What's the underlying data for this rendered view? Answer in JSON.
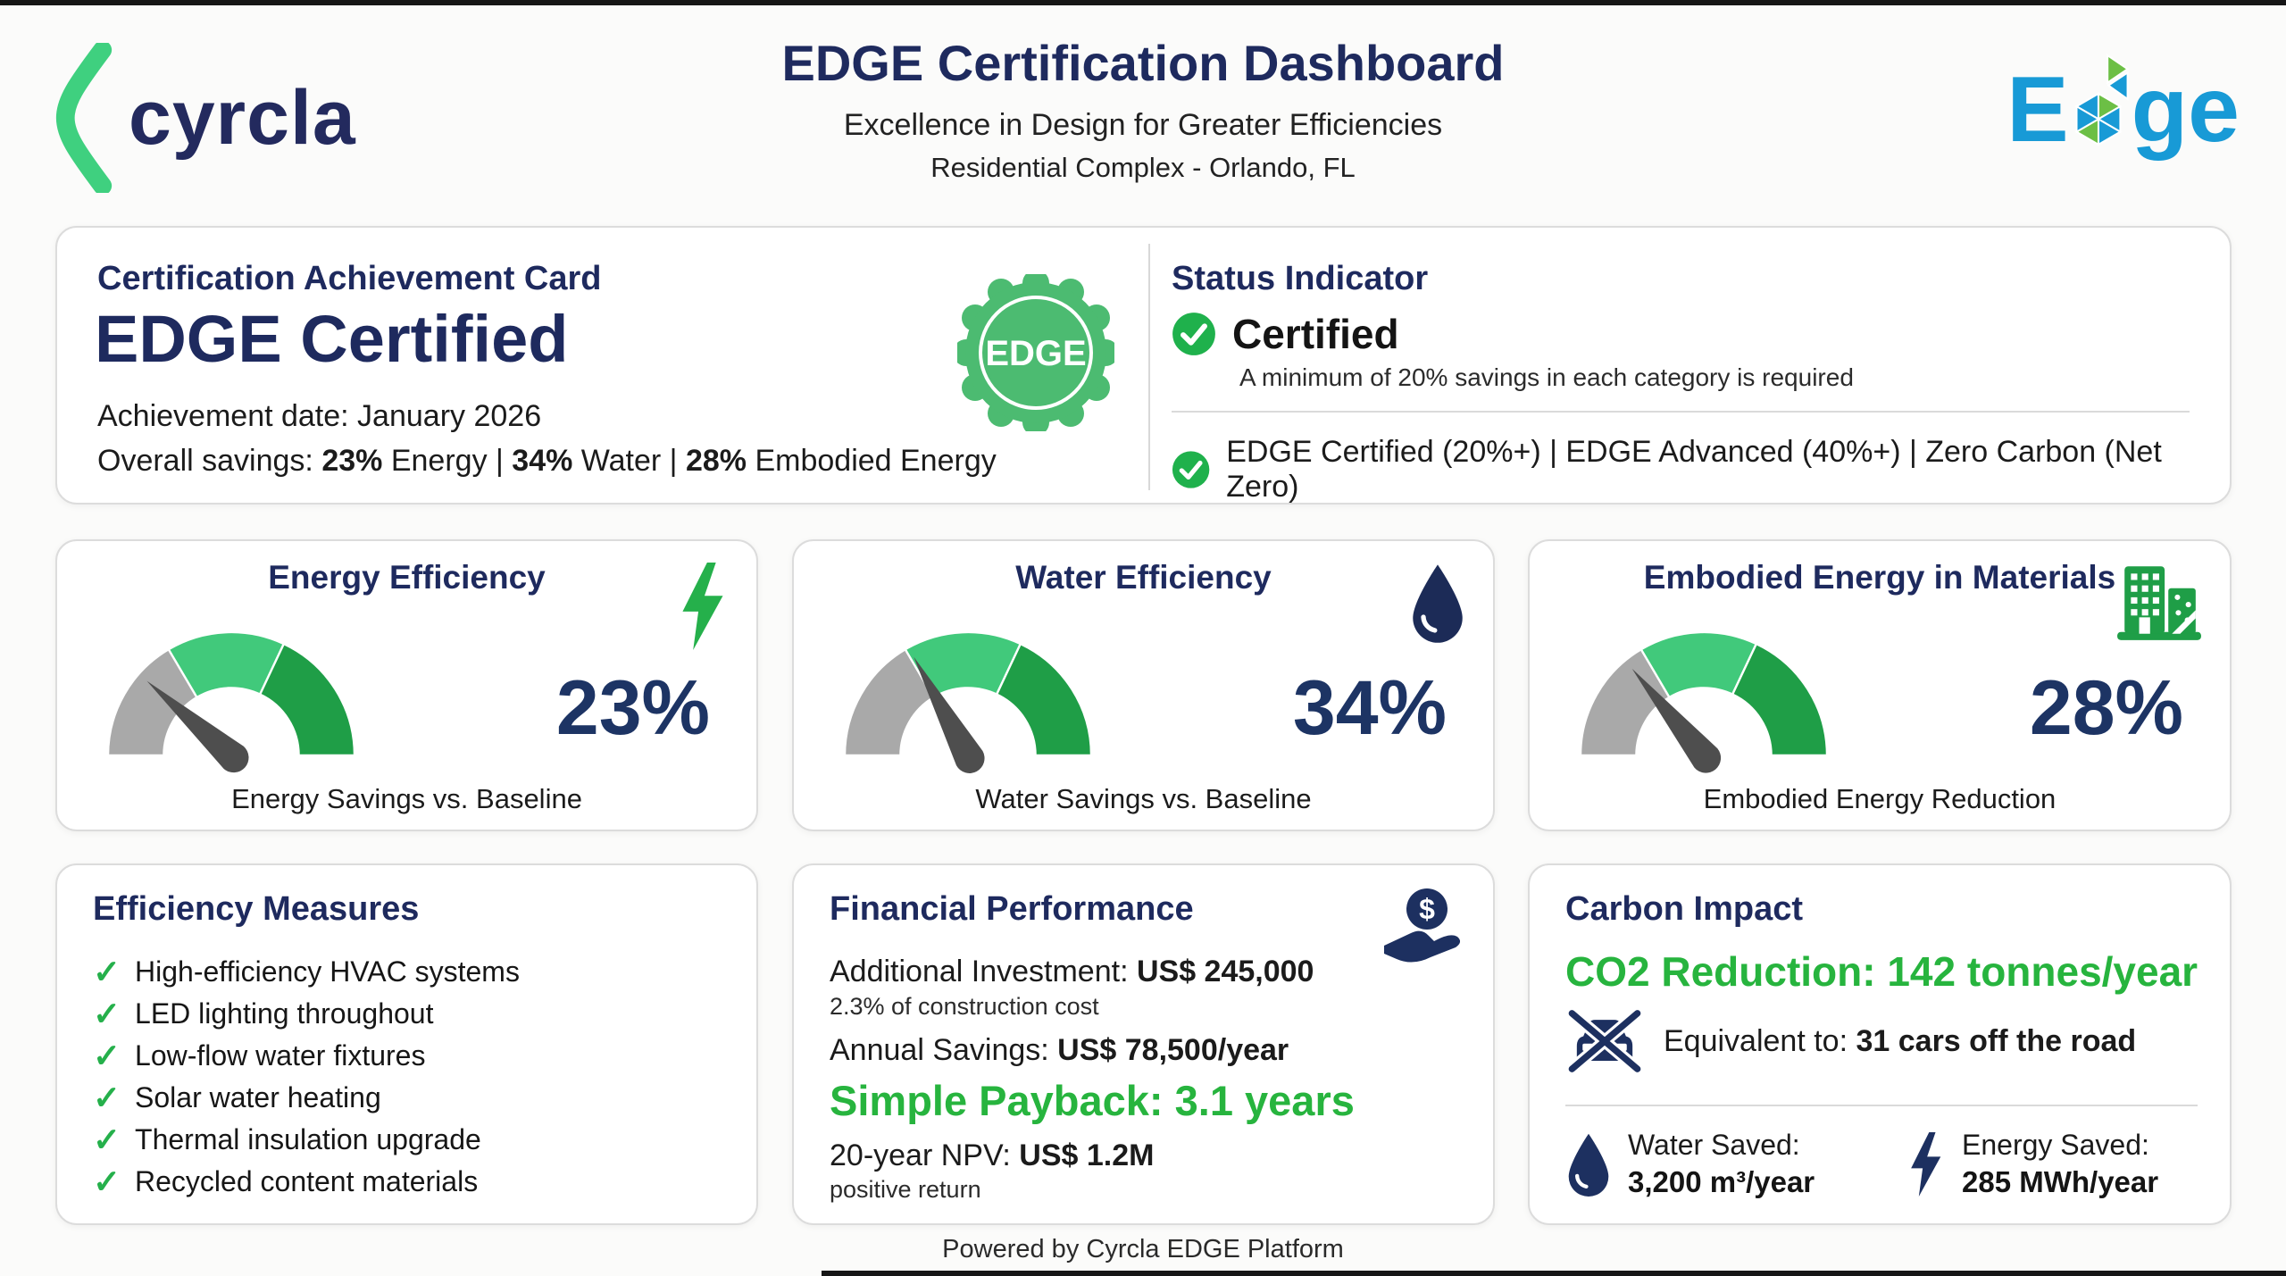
{
  "header": {
    "brand": "cyrcla",
    "title": "EDGE Certification Dashboard",
    "subtitle": "Excellence in Design for Greater Efficiencies",
    "location": "Residential Complex - Orlando, FL",
    "edge_logo_e": "E",
    "edge_logo_ge": "ge"
  },
  "achievement": {
    "card_label": "Certification Achievement Card",
    "title": "EDGE Certified",
    "date_line": "Achievement date: January 2026",
    "overall_label": "Overall savings: ",
    "energy_value": "23%",
    "energy_unit": " Energy | ",
    "water_value": "34%",
    "water_unit": " Water | ",
    "embodied_value": "28%",
    "embodied_unit": " Embodied Energy",
    "badge_text": "EDGE"
  },
  "status": {
    "heading": "Status Indicator",
    "state": "Certified",
    "note": "A minimum of 20% savings in each category is required",
    "levels": "EDGE Certified (20%+) | EDGE Advanced (40%+) | Zero Carbon (Net Zero)"
  },
  "chart_data": [
    {
      "type": "gauge",
      "title": "Energy Efficiency",
      "value": 23,
      "display": "23%",
      "caption": "Energy Savings vs. Baseline",
      "range": [
        0,
        100
      ],
      "segments": [
        {
          "from": 0,
          "to": 33,
          "color": "#a9a9a9"
        },
        {
          "from": 33,
          "to": 64,
          "color": "#41c97b"
        },
        {
          "from": 64,
          "to": 100,
          "color": "#1f9e47"
        }
      ]
    },
    {
      "type": "gauge",
      "title": "Water Efficiency",
      "value": 34,
      "display": "34%",
      "caption": "Water Savings vs. Baseline",
      "range": [
        0,
        100
      ],
      "segments": [
        {
          "from": 0,
          "to": 33,
          "color": "#a9a9a9"
        },
        {
          "from": 33,
          "to": 64,
          "color": "#41c97b"
        },
        {
          "from": 64,
          "to": 100,
          "color": "#1f9e47"
        }
      ]
    },
    {
      "type": "gauge",
      "title": "Embodied Energy in Materials",
      "value": 28,
      "display": "28%",
      "caption": "Embodied Energy Reduction",
      "range": [
        0,
        100
      ],
      "segments": [
        {
          "from": 0,
          "to": 33,
          "color": "#a9a9a9"
        },
        {
          "from": 33,
          "to": 64,
          "color": "#41c97b"
        },
        {
          "from": 64,
          "to": 100,
          "color": "#1f9e47"
        }
      ]
    }
  ],
  "measures": {
    "title": "Efficiency Measures",
    "check_glyph": "✓",
    "items": [
      "High-efficiency HVAC systems",
      "LED lighting throughout",
      "Low-flow water fixtures",
      "Solar water heating",
      "Thermal insulation upgrade",
      "Recycled content materials"
    ]
  },
  "financial": {
    "title": "Financial Performance",
    "investment_label": "Additional Investment: ",
    "investment_value": "US$ 245,000",
    "investment_note": "2.3% of construction cost",
    "savings_label": "Annual Savings: ",
    "savings_value": "US$ 78,500/year",
    "payback": "Simple Payback: 3.1 years",
    "npv_label": "20-year NPV: ",
    "npv_value": "US$ 1.2M",
    "npv_note": "positive return"
  },
  "carbon": {
    "title": "Carbon Impact",
    "co2_line": "CO2 Reduction: 142 tonnes/year",
    "equiv_label": "Equivalent to: ",
    "equiv_value": "31 cars off the road",
    "water_label": "Water Saved:",
    "water_value": "3,200 m³/year",
    "energy_label": "Energy Saved:",
    "energy_value": "285 MWh/year"
  },
  "footer": {
    "text": "Powered by Cyrcla EDGE Platform"
  },
  "colors": {
    "navy_heading": "#1e2a5e",
    "navy_value": "#1d3464",
    "green_text": "#27b43e",
    "green_check": "#25b04b",
    "badge_green": "#4cbb71",
    "edge_blue": "#189ad6",
    "edge_green": "#6cbf45",
    "gauge_gray": "#a9a9a9",
    "gauge_light_green": "#41c97b",
    "gauge_dark_green": "#1f9e47",
    "needle_gray": "#4e4e4e"
  }
}
